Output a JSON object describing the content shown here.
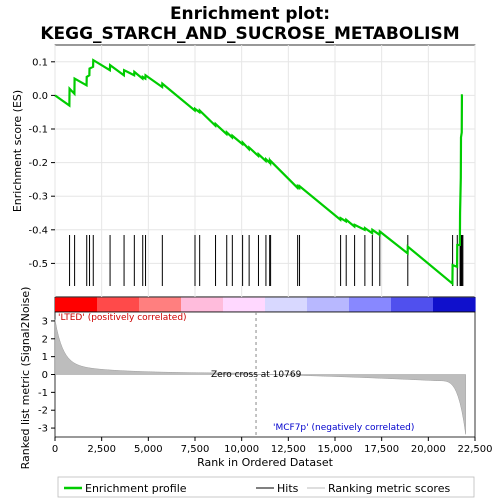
{
  "chart_data": {
    "type": "line",
    "title_line1": "Enrichment plot:",
    "title_line2": "KEGG_STARCH_AND_SUCROSE_METABOLISM",
    "ylabel_top": "Enrichment score (ES)",
    "ylabel_bottom": "Ranked list metric (Signal2Noise)",
    "xlabel": "Rank in Ordered Dataset",
    "xlim": [
      0,
      22500
    ],
    "ylim_top": [
      -0.6,
      0.15
    ],
    "ylim_bottom": [
      -3.5,
      3.5
    ],
    "x_ticks": [
      0,
      2500,
      5000,
      7500,
      10000,
      12500,
      15000,
      17500,
      20000,
      22500
    ],
    "x_tick_labels": [
      "0",
      "2,500",
      "5,000",
      "7,500",
      "10,000",
      "12,500",
      "15,000",
      "17,500",
      "20,000",
      "22,500"
    ],
    "y_ticks_top": [
      0.1,
      0.0,
      -0.1,
      -0.2,
      -0.3,
      -0.4,
      -0.5
    ],
    "y_tick_labels_top": [
      "0.1",
      "0.0",
      "-0.1",
      "-0.2",
      "-0.3",
      "-0.4",
      "-0.5"
    ],
    "y_ticks_bottom": [
      3,
      2,
      1,
      0,
      -1,
      -2,
      -3
    ],
    "y_tick_labels_bottom": [
      "3",
      "2",
      "1",
      "0",
      "-1",
      "-2",
      "-3"
    ],
    "annotations": {
      "positive": "'LTED' (positively correlated)",
      "negative": "'MCF7p' (negatively correlated)",
      "zero_cross": "Zero cross at 10769"
    },
    "zero_cross": 10769,
    "hits": [
      780,
      1050,
      1700,
      1850,
      2050,
      2950,
      3700,
      4250,
      4700,
      4850,
      5750,
      7500,
      7750,
      8600,
      9200,
      9500,
      10050,
      10400,
      10900,
      11300,
      11500,
      11550,
      13000,
      13100,
      15300,
      15600,
      16050,
      16600,
      17000,
      17400,
      18900,
      21300,
      21550,
      21700,
      21750,
      21780,
      21800,
      21850
    ],
    "es_curve": [
      [
        0,
        0.0
      ],
      [
        770,
        -0.03
      ],
      [
        780,
        0.02
      ],
      [
        1040,
        0.005
      ],
      [
        1050,
        0.05
      ],
      [
        1690,
        0.03
      ],
      [
        1700,
        0.055
      ],
      [
        1840,
        0.06
      ],
      [
        1850,
        0.08
      ],
      [
        2040,
        0.085
      ],
      [
        2050,
        0.105
      ],
      [
        2940,
        0.075
      ],
      [
        2950,
        0.09
      ],
      [
        3690,
        0.06
      ],
      [
        3700,
        0.075
      ],
      [
        4240,
        0.06
      ],
      [
        4250,
        0.07
      ],
      [
        4690,
        0.05
      ],
      [
        4700,
        0.055
      ],
      [
        4840,
        0.05
      ],
      [
        4850,
        0.06
      ],
      [
        5740,
        0.025
      ],
      [
        5750,
        0.035
      ],
      [
        7490,
        -0.045
      ],
      [
        7500,
        -0.04
      ],
      [
        7740,
        -0.05
      ],
      [
        7750,
        -0.045
      ],
      [
        8590,
        -0.09
      ],
      [
        8600,
        -0.085
      ],
      [
        9190,
        -0.115
      ],
      [
        9200,
        -0.11
      ],
      [
        9490,
        -0.125
      ],
      [
        9500,
        -0.12
      ],
      [
        10040,
        -0.145
      ],
      [
        10050,
        -0.14
      ],
      [
        10390,
        -0.16
      ],
      [
        10400,
        -0.155
      ],
      [
        10890,
        -0.18
      ],
      [
        10900,
        -0.175
      ],
      [
        11290,
        -0.195
      ],
      [
        11300,
        -0.19
      ],
      [
        11490,
        -0.2
      ],
      [
        11500,
        -0.195
      ],
      [
        11540,
        -0.2
      ],
      [
        11550,
        -0.195
      ],
      [
        12990,
        -0.275
      ],
      [
        13000,
        -0.27
      ],
      [
        13090,
        -0.275
      ],
      [
        13100,
        -0.27
      ],
      [
        15290,
        -0.37
      ],
      [
        15300,
        -0.365
      ],
      [
        15590,
        -0.375
      ],
      [
        15600,
        -0.37
      ],
      [
        16040,
        -0.39
      ],
      [
        16050,
        -0.385
      ],
      [
        16590,
        -0.4
      ],
      [
        16600,
        -0.395
      ],
      [
        16990,
        -0.41
      ],
      [
        17000,
        -0.4
      ],
      [
        17390,
        -0.415
      ],
      [
        17400,
        -0.405
      ],
      [
        18890,
        -0.47
      ],
      [
        18900,
        -0.45
      ],
      [
        21290,
        -0.56
      ],
      [
        21300,
        -0.505
      ],
      [
        21540,
        -0.51
      ],
      [
        21550,
        -0.445
      ],
      [
        21690,
        -0.445
      ],
      [
        21700,
        -0.35
      ],
      [
        21740,
        -0.245
      ],
      [
        21750,
        -0.125
      ],
      [
        21790,
        -0.11
      ],
      [
        21800,
        0.0
      ],
      [
        21850,
        0.0
      ]
    ],
    "legend": [
      "Enrichment profile",
      "Hits",
      "Ranking metric scores"
    ],
    "colors": {
      "es_line": "#00cc00",
      "hit": "#000000",
      "metric_fill": "#bdbdbd",
      "zero_line": "#888888",
      "pos_label": "#cc0000",
      "neg_label": "#0000cc",
      "grid": "#e6e6e6",
      "bar_segments": [
        "#ff0000",
        "#ff4a4a",
        "#ff7f7f",
        "#ffbcdc",
        "#ffd8ff",
        "#d8d8ff",
        "#b8b8ff",
        "#8888ff",
        "#5050ee",
        "#1010cc"
      ]
    }
  }
}
